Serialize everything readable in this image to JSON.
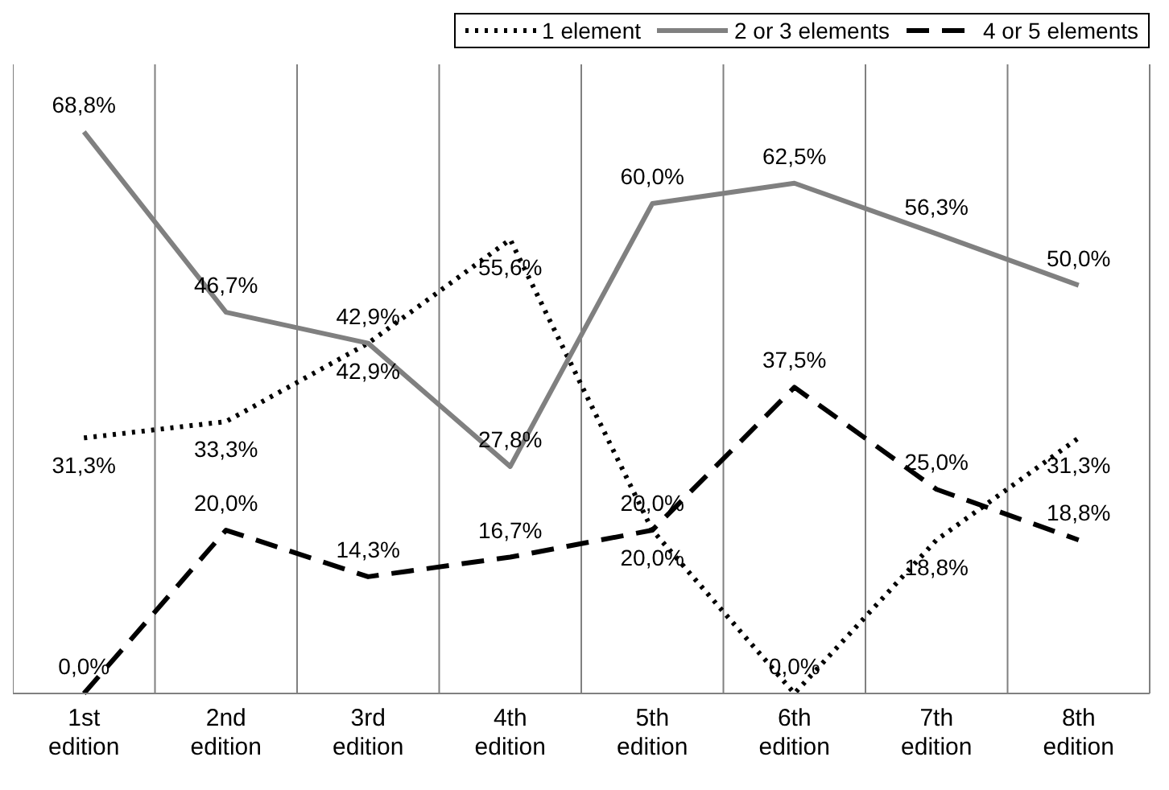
{
  "chart_data": {
    "type": "line",
    "categories": [
      "1st edition",
      "2nd edition",
      "3rd edition",
      "4th edition",
      "5th edition",
      "6th edition",
      "7th edition",
      "8th edition"
    ],
    "series": [
      {
        "name": "1 element",
        "color": "#000000",
        "line_style": "dotted",
        "values": [
          31.3,
          33.3,
          42.9,
          55.6,
          20.0,
          0.0,
          18.8,
          31.3
        ],
        "value_labels": [
          "31,3%",
          "33,3%",
          "42,9%",
          "55,6%",
          "20,0%",
          "0,0%",
          "18,8%",
          "31,3%"
        ]
      },
      {
        "name": "2 or 3 elements",
        "color": "#808080",
        "line_style": "solid",
        "values": [
          68.8,
          46.7,
          42.9,
          27.8,
          60.0,
          62.5,
          56.3,
          50.0
        ],
        "value_labels": [
          "68,8%",
          "46,7%",
          "42,9%",
          "27,8%",
          "60,0%",
          "62,5%",
          "56,3%",
          "50,0%"
        ]
      },
      {
        "name": "4 or 5 elements",
        "color": "#000000",
        "line_style": "dashed",
        "values": [
          0.0,
          20.0,
          14.3,
          16.7,
          20.0,
          37.5,
          25.0,
          18.8
        ],
        "value_labels": [
          "0,0%",
          "20,0%",
          "14,3%",
          "16,7%",
          "20,0%",
          "37,5%",
          "25,0%",
          "18,8%"
        ]
      }
    ],
    "grid": "x",
    "legend": "top right",
    "marker": "none"
  }
}
